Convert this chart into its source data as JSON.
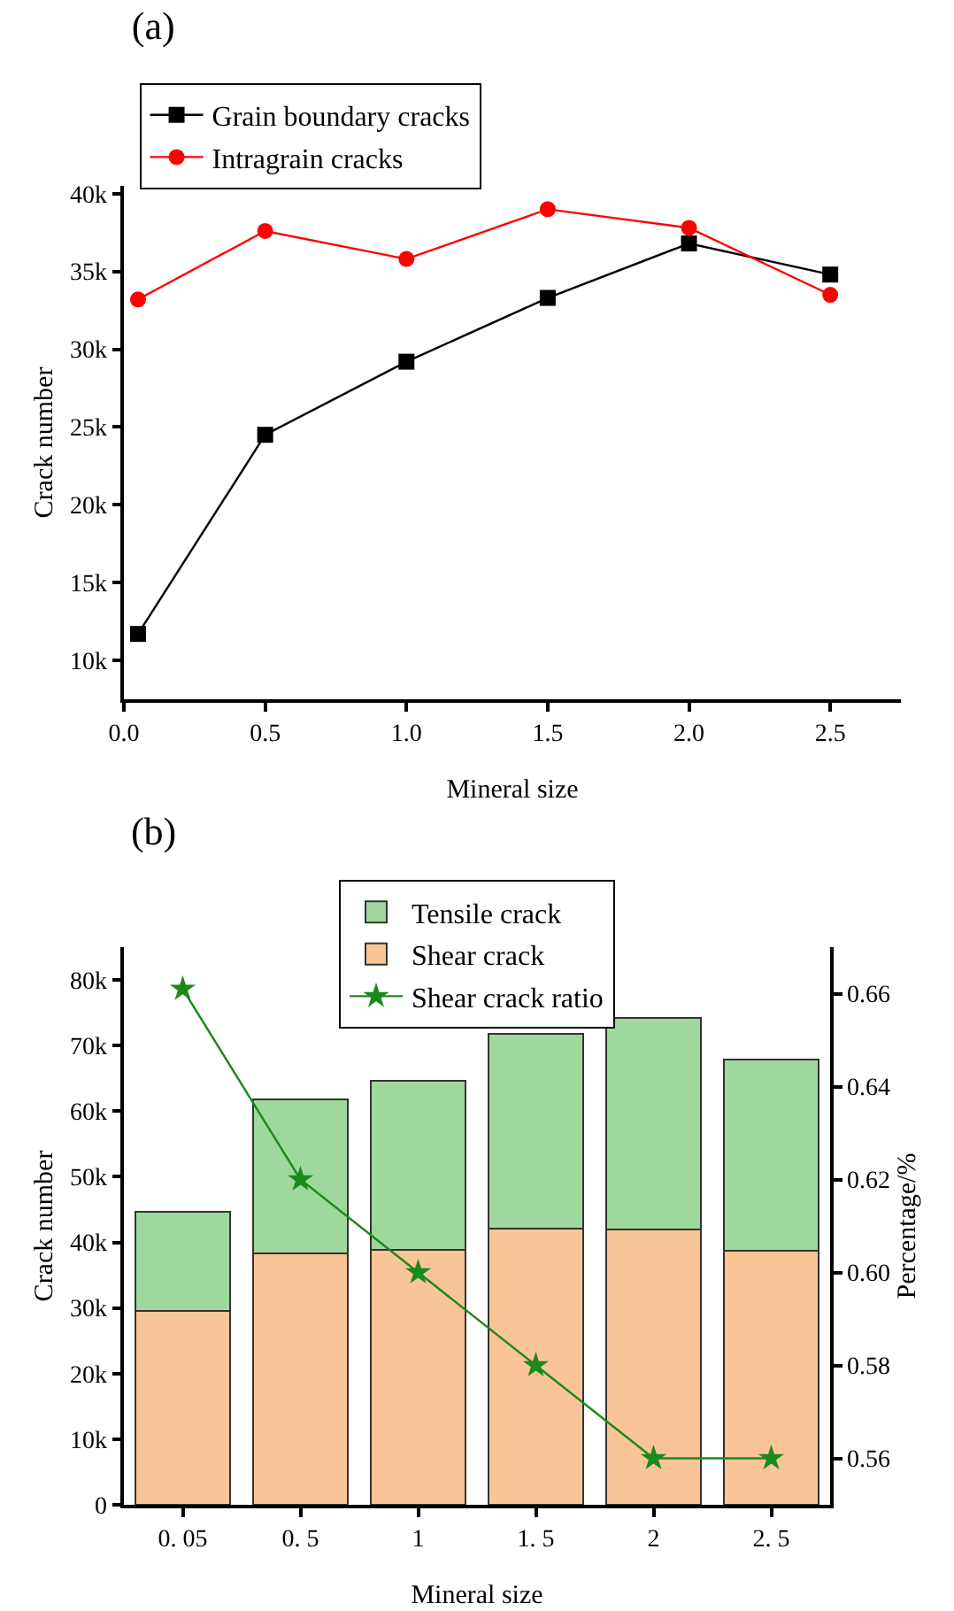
{
  "chart_data": [
    {
      "type": "line",
      "title": "(a)",
      "xlabel": "Mineral size",
      "ylabel": "Crack number",
      "x": [
        0.05,
        0.5,
        1.0,
        1.5,
        2.0,
        2.5
      ],
      "xlim": [
        0,
        2.75
      ],
      "xticks": [
        {
          "value": 0,
          "label": "0.0"
        },
        0.5,
        {
          "value": 1,
          "label": "1.0"
        },
        1.5,
        {
          "value": 2,
          "label": "2.0"
        },
        2.5
      ],
      "ylim": [
        7500,
        40500
      ],
      "yticks": [
        {
          "value": 10000,
          "label": "10k"
        },
        {
          "value": 15000,
          "label": "15k"
        },
        {
          "value": 20000,
          "label": "20k"
        },
        {
          "value": 25000,
          "label": "25k"
        },
        {
          "value": 30000,
          "label": "30k"
        },
        {
          "value": 35000,
          "label": "35k"
        },
        {
          "value": 40000,
          "label": "40k"
        }
      ],
      "series": [
        {
          "name": "Grain boundary cracks",
          "color": "#000000",
          "marker": "square",
          "values": [
            11700,
            24500,
            29200,
            33300,
            36800,
            34800
          ]
        },
        {
          "name": "Intragrain cracks",
          "color": "#ff0000",
          "marker": "circle",
          "values": [
            33200,
            37600,
            35800,
            39000,
            37800,
            33500
          ]
        }
      ],
      "legend": "top left",
      "grid": false
    },
    {
      "type": "bar",
      "title": "(b)",
      "xlabel": "Mineral size",
      "ylabel": "Crack number",
      "y2label": "Percentage/%",
      "categories": [
        "0. 05",
        "0. 5",
        "1",
        "1. 5",
        "2",
        "2. 5"
      ],
      "stacked": true,
      "ylim": [
        0,
        85000
      ],
      "yticks": [
        0,
        {
          "value": 10000,
          "label": "10k"
        },
        {
          "value": 20000,
          "label": "20k"
        },
        {
          "value": 30000,
          "label": "30k"
        },
        {
          "value": 40000,
          "label": "40k"
        },
        {
          "value": 50000,
          "label": "50k"
        },
        {
          "value": 60000,
          "label": "60k"
        },
        {
          "value": 70000,
          "label": "70k"
        },
        {
          "value": 80000,
          "label": "80k"
        }
      ],
      "y2lim": [
        0.55,
        0.67
      ],
      "y2ticks": [
        0.56,
        0.58,
        {
          "value": 0.6,
          "label": "0.60"
        },
        0.62,
        0.64,
        0.66
      ],
      "series": [
        {
          "name": "Shear crack",
          "color": "#fac596",
          "values": [
            29600,
            38300,
            38800,
            42100,
            42000,
            38700
          ]
        },
        {
          "name": "Tensile crack",
          "color": "#9fd89c",
          "values": [
            15100,
            23500,
            25800,
            29700,
            32200,
            29200
          ]
        },
        {
          "name": "Shear crack ratio",
          "type": "line",
          "axis": "y2",
          "color": "#1a8a1a",
          "marker": "star",
          "values": [
            0.661,
            0.62,
            0.6,
            0.58,
            0.56,
            0.56
          ]
        }
      ],
      "legend": "top",
      "grid": false
    }
  ]
}
